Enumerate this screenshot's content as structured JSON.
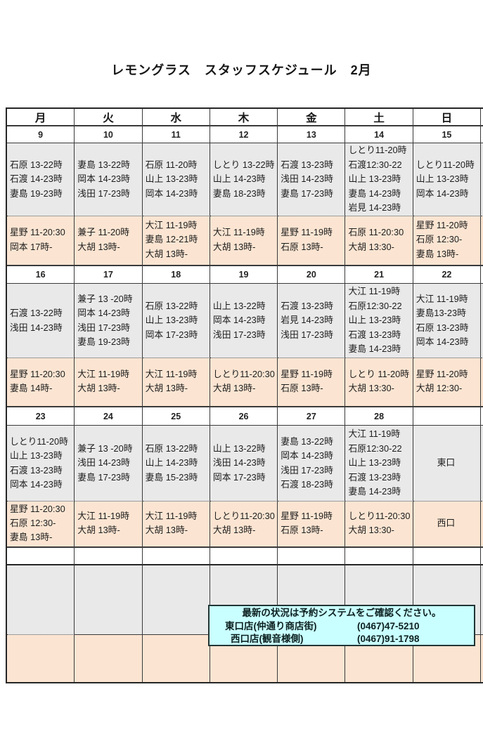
{
  "title": "レモングラス　スタッフスケジュール　2月",
  "weekdays": [
    {
      "label": "月",
      "color": "black"
    },
    {
      "label": "火",
      "color": "black"
    },
    {
      "label": "水",
      "color": "black"
    },
    {
      "label": "木",
      "color": "black"
    },
    {
      "label": "金",
      "color": "black"
    },
    {
      "label": "土",
      "color": "blue"
    },
    {
      "label": "日",
      "color": "red"
    }
  ],
  "weeks": [
    {
      "dates": [
        {
          "label": "9",
          "color": "black"
        },
        {
          "label": "10",
          "color": "black"
        },
        {
          "label": "11",
          "color": "red"
        },
        {
          "label": "12",
          "color": "black"
        },
        {
          "label": "13",
          "color": "black"
        },
        {
          "label": "14",
          "color": "blue"
        },
        {
          "label": "15",
          "color": "red"
        }
      ],
      "day_shifts": [
        {
          "lines": [
            "石原 13-22時",
            "石渡 14-23時",
            "妻島 19-23時"
          ]
        },
        {
          "lines": [
            "妻島 13-22時",
            "岡本 14-23時",
            "浅田 17-23時"
          ]
        },
        {
          "lines": [
            "石原 11-20時",
            "山上 13-23時",
            "岡本 14-23時"
          ]
        },
        {
          "lines": [
            "しとり 13-22時",
            "山上 14-23時",
            "妻島 18-23時"
          ]
        },
        {
          "lines": [
            "石渡 13-23時",
            "浅田 14-23時",
            "妻島 17-23時"
          ]
        },
        {
          "lines": [
            "しとり11-20時",
            "石渡12:30-22",
            "山上 13-23時",
            "妻島 14-23時",
            "岩見 14-23時"
          ]
        },
        {
          "lines": [
            "しとり11-20時",
            "山上 13-23時",
            "岡本 14-23時"
          ]
        }
      ],
      "late_shifts": [
        {
          "lines": [
            "星野 11-20:30",
            "岡本 17時-"
          ]
        },
        {
          "lines": [
            "兼子 11-20時",
            "大胡 13時-"
          ]
        },
        {
          "lines": [
            "大江 11-19時",
            "妻島 12-21時",
            "大胡 13時-"
          ]
        },
        {
          "lines": [
            "大江 11-19時",
            "大胡 13時-"
          ]
        },
        {
          "lines": [
            "星野 11-19時",
            "石原 13時-"
          ]
        },
        {
          "lines": [
            "石原 11-20:30",
            "大胡 13:30-"
          ]
        },
        {
          "lines": [
            "星野 11-20時",
            "石原 12:30-",
            "妻島 13時-"
          ]
        }
      ]
    },
    {
      "dates": [
        {
          "label": "16",
          "color": "black"
        },
        {
          "label": "17",
          "color": "black"
        },
        {
          "label": "18",
          "color": "black"
        },
        {
          "label": "19",
          "color": "black"
        },
        {
          "label": "20",
          "color": "black"
        },
        {
          "label": "21",
          "color": "blue"
        },
        {
          "label": "22",
          "color": "red"
        }
      ],
      "day_shifts": [
        {
          "lines": [
            "石渡 13-22時",
            "浅田 14-23時"
          ]
        },
        {
          "lines": [
            "兼子 13 -20時",
            "岡本 14-23時",
            "浅田 17-23時",
            "妻島 19-23時"
          ]
        },
        {
          "lines": [
            "石原 13-22時",
            "山上 13-23時",
            "岡本 17-23時"
          ]
        },
        {
          "lines": [
            "山上 13-22時",
            "岡本 14-23時",
            "浅田 17-23時"
          ]
        },
        {
          "lines": [
            "石渡 13-23時",
            "岩見 14-23時",
            "浅田 17-23時"
          ]
        },
        {
          "lines": [
            "大江 11-19時",
            "石原12:30-22",
            "山上 13-23時",
            "石渡 13-23時",
            "妻島 14-23時"
          ]
        },
        {
          "lines": [
            "大江 11-19時",
            "妻島13-23時",
            "石原 13-23時",
            "岡本 14-23時"
          ]
        }
      ],
      "late_shifts": [
        {
          "lines": [
            "星野 11-20:30",
            "妻島 14時-"
          ]
        },
        {
          "lines": [
            "大江 11-19時",
            "大胡 13時-"
          ]
        },
        {
          "lines": [
            "大江 11-19時",
            "大胡 13時-"
          ]
        },
        {
          "lines": [
            "しとり11-20:30",
            "大胡 13時-"
          ]
        },
        {
          "lines": [
            "星野 11-19時",
            "石原 13時-"
          ]
        },
        {
          "lines": [
            "しとり 11-20時",
            "大胡 13:30-"
          ]
        },
        {
          "lines": [
            "星野 11-20時",
            "大胡 12:30-"
          ]
        }
      ]
    },
    {
      "dates": [
        {
          "label": "23",
          "color": "red"
        },
        {
          "label": "24",
          "color": "black"
        },
        {
          "label": "25",
          "color": "black"
        },
        {
          "label": "26",
          "color": "black"
        },
        {
          "label": "27",
          "color": "black"
        },
        {
          "label": "28",
          "color": "blue"
        },
        {
          "label": "",
          "color": "black"
        }
      ],
      "day_shifts": [
        {
          "lines": [
            "しとり11-20時",
            "山上 13-23時",
            "石渡 13-23時",
            "岡本 14-23時"
          ]
        },
        {
          "lines": [
            "兼子 13 -20時",
            "浅田 14-23時",
            "妻島 17-23時"
          ]
        },
        {
          "lines": [
            "石原 13-22時",
            "山上 14-23時",
            "妻島 15-23時"
          ]
        },
        {
          "lines": [
            "山上 13-22時",
            "浅田 14-23時",
            "岡本 17-23時"
          ]
        },
        {
          "lines": [
            "妻島 13-22時",
            "岡本 14-23時",
            "浅田 17-23時",
            "石渡 18-23時"
          ]
        },
        {
          "lines": [
            "大江 11-19時",
            "石原12:30-22",
            "山上 13-23時",
            "石渡 13-23時",
            "妻島 14-23時"
          ]
        },
        {
          "lines": [
            "東口"
          ],
          "align": "center"
        }
      ],
      "late_shifts": [
        {
          "lines": [
            "星野 11-20:30",
            "石原 12:30-",
            "妻島 13時-"
          ]
        },
        {
          "lines": [
            "大江 11-19時",
            "大胡 13時-"
          ]
        },
        {
          "lines": [
            "大江 11-19時",
            "大胡 13時-"
          ]
        },
        {
          "lines": [
            "しとり11-20:30",
            "大胡 13時-"
          ]
        },
        {
          "lines": [
            "星野 11-19時",
            "石原 13時-"
          ]
        },
        {
          "lines": [
            "しとり11-20:30",
            "大胡 13:30-"
          ]
        },
        {
          "lines": [
            "西口"
          ],
          "align": "center"
        }
      ]
    }
  ],
  "notice": {
    "headline": "最新の状況は予約システムをご確認ください。",
    "shops": [
      {
        "name": "東口店(仲通り商店街)",
        "phone": "(0467)47-5210"
      },
      {
        "name": "西口店(観音様側)",
        "phone": "(0467)91-1798"
      }
    ]
  },
  "colors": {
    "saturday_blue": "#4a74b8",
    "sunday_red": "#ee2222",
    "day_cell_bg": "#e9e9e9",
    "late_cell_bg": "#fbe5d2",
    "notice_bg": "#c9ffff"
  }
}
